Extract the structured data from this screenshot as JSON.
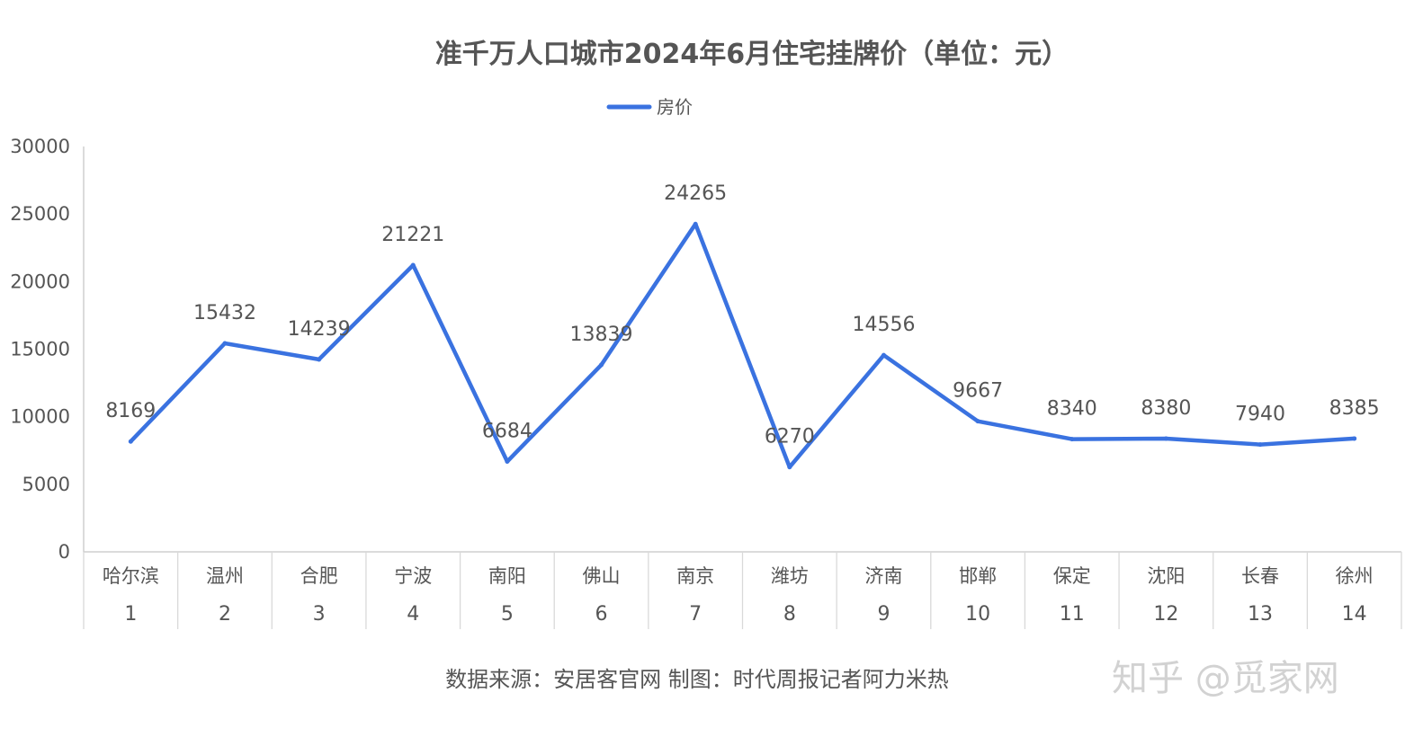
{
  "chart_data": {
    "type": "line",
    "title": "准千万人口城市2024年6月住宅挂牌价（单位：元）",
    "series": [
      {
        "name": "房价",
        "color": "#3a72e0",
        "values": [
          8169,
          15432,
          14239,
          21221,
          6684,
          13839,
          24265,
          6270,
          14556,
          9667,
          8340,
          8380,
          7940,
          8385
        ]
      }
    ],
    "categories": [
      "哈尔滨",
      "温州",
      "合肥",
      "宁波",
      "南阳",
      "佛山",
      "南京",
      "潍坊",
      "济南",
      "邯郸",
      "保定",
      "沈阳",
      "长春",
      "徐州"
    ],
    "category_index": [
      "1",
      "2",
      "3",
      "4",
      "5",
      "6",
      "7",
      "8",
      "9",
      "10",
      "11",
      "12",
      "13",
      "14"
    ],
    "ylim": [
      0,
      30000
    ],
    "yticks": [
      "0",
      "5000",
      "10000",
      "15000",
      "20000",
      "25000",
      "30000"
    ],
    "legend_position": "top-center",
    "grid": false,
    "drop_lines": true
  },
  "footer": {
    "source": "数据来源：安居客官网 制图：时代周报记者阿力米热"
  },
  "watermark": {
    "text": "知乎 @觅家网"
  }
}
